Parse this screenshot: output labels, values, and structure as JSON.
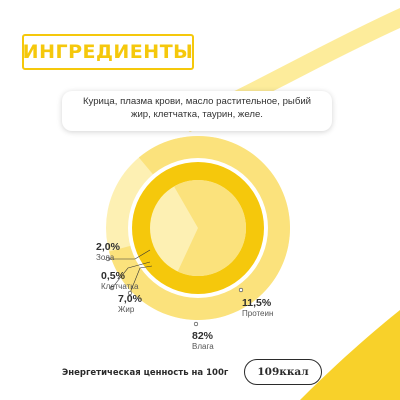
{
  "header": {
    "title": "ИНГРЕДИЕНТЫ"
  },
  "ingredients": {
    "line1": "Курица, плазма крови, масло растительное, рыбий",
    "line2": "жир,  клетчатка, таурин, желе."
  },
  "chart_data": {
    "type": "pie",
    "slices": [
      {
        "name": "Влага",
        "percent": 82,
        "label": "82%",
        "color": "#fbe27c"
      },
      {
        "name": "Протеин",
        "percent": 11.5,
        "label": "11,5%",
        "color": "#f6c70e"
      },
      {
        "name": "Жир",
        "percent": 7.0,
        "label": "7,0%",
        "color": "#f6c70e"
      },
      {
        "name": "Клетчатка",
        "percent": 0.5,
        "label": "0,5%",
        "color": "#f6c70e"
      },
      {
        "name": "Зола",
        "percent": 2.0,
        "label": "2,0%",
        "color": "#f6c70e"
      }
    ]
  },
  "labels": {
    "ash": {
      "pct": "2,0%",
      "name": "Зола"
    },
    "fiber": {
      "pct": "0,5%",
      "name": "Клетчатка"
    },
    "fat": {
      "pct": "7,0%",
      "name": "Жир"
    },
    "protein": {
      "pct": "11,5%",
      "name": "Протеин"
    },
    "moisture": {
      "pct": "82%",
      "name": "Влага"
    }
  },
  "energy": {
    "label": "Энергетическая ценность на 100г",
    "value": "109ккал"
  },
  "colors": {
    "accent": "#f5c80c",
    "light": "#fbe27c",
    "pale": "#fdf0b3"
  }
}
